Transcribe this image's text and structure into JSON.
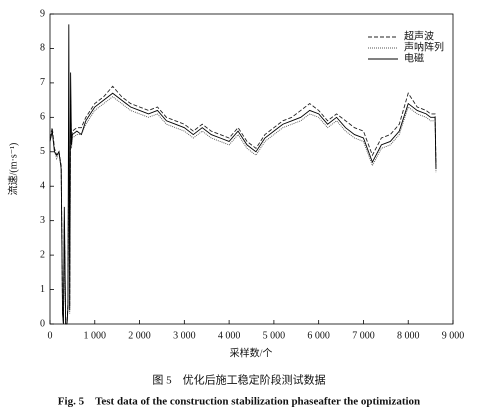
{
  "chart_data": {
    "type": "line",
    "y_label": "流速/(m·s⁻¹)",
    "x_label": "采样数/个",
    "caption": "图 5　优化后施工稳定阶段测试数据",
    "caption_en": "Fig. 5　Test data of the construction stabilization phaseafter the optimization",
    "x": [
      0,
      50,
      100,
      150,
      200,
      250,
      280,
      300,
      320,
      350,
      380,
      400,
      420,
      440,
      460,
      480,
      500,
      600,
      700,
      800,
      900,
      1000,
      1200,
      1400,
      1600,
      1800,
      2000,
      2200,
      2400,
      2600,
      2800,
      3000,
      3200,
      3400,
      3600,
      3800,
      4000,
      4200,
      4400,
      4600,
      4800,
      5000,
      5200,
      5400,
      5600,
      5800,
      6000,
      6200,
      6400,
      6600,
      6800,
      7000,
      7200,
      7400,
      7600,
      7800,
      8000,
      8200,
      8400,
      8500,
      8600,
      8620
    ],
    "series": [
      {
        "name": "超声波",
        "color": "#222",
        "style": "dashed",
        "values": [
          5.4,
          5.7,
          5.1,
          4.9,
          5.0,
          4.6,
          0.5,
          0,
          3.0,
          0,
          0,
          0.6,
          5.5,
          0.5,
          6.5,
          5.3,
          5.6,
          5.7,
          5.7,
          6.0,
          6.2,
          6.4,
          6.6,
          6.9,
          6.6,
          6.4,
          6.3,
          6.2,
          6.3,
          6.0,
          5.9,
          5.8,
          5.6,
          5.8,
          5.6,
          5.5,
          5.4,
          5.7,
          5.3,
          5.1,
          5.5,
          5.7,
          5.9,
          6.0,
          6.2,
          6.4,
          6.2,
          5.9,
          6.1,
          5.9,
          5.7,
          5.6,
          4.9,
          5.4,
          5.5,
          5.8,
          6.7,
          6.3,
          6.2,
          6.1,
          6.1,
          4.6
        ]
      },
      {
        "name": "声呐阵列",
        "color": "#555",
        "style": "dotted",
        "values": [
          5.3,
          5.6,
          5.0,
          4.8,
          5.0,
          4.5,
          0.4,
          0,
          2.8,
          0,
          0,
          0.4,
          5.0,
          0.3,
          6.0,
          5.1,
          5.4,
          5.5,
          5.5,
          5.8,
          6.0,
          6.2,
          6.4,
          6.6,
          6.4,
          6.2,
          6.1,
          6.0,
          6.1,
          5.8,
          5.7,
          5.6,
          5.4,
          5.6,
          5.4,
          5.3,
          5.2,
          5.5,
          5.1,
          4.9,
          5.3,
          5.5,
          5.7,
          5.8,
          5.9,
          6.1,
          6.0,
          5.7,
          5.9,
          5.6,
          5.4,
          5.3,
          4.6,
          5.1,
          5.2,
          5.5,
          6.3,
          6.1,
          6.0,
          5.9,
          5.9,
          4.4
        ]
      },
      {
        "name": "电磁",
        "color": "#000",
        "style": "solid",
        "values": [
          5.3,
          5.6,
          5.0,
          4.9,
          5.0,
          4.5,
          0.3,
          0,
          3.4,
          0,
          0,
          0.5,
          8.7,
          0.4,
          7.3,
          5.2,
          5.5,
          5.6,
          5.5,
          5.9,
          6.1,
          6.3,
          6.5,
          6.7,
          6.5,
          6.3,
          6.2,
          6.1,
          6.2,
          5.9,
          5.8,
          5.7,
          5.5,
          5.7,
          5.5,
          5.4,
          5.3,
          5.6,
          5.2,
          5.0,
          5.4,
          5.6,
          5.8,
          5.9,
          6.0,
          6.2,
          6.1,
          5.8,
          6.0,
          5.7,
          5.5,
          5.4,
          4.7,
          5.2,
          5.3,
          5.6,
          6.4,
          6.2,
          6.1,
          6.0,
          6.0,
          4.5
        ]
      }
    ],
    "xlim": [
      0,
      9000
    ],
    "xticks": [
      0,
      {
        "value": 1000,
        "label": "1 000"
      },
      {
        "value": 2000,
        "label": "2 000"
      },
      {
        "value": 3000,
        "label": "3 000"
      },
      {
        "value": 4000,
        "label": "4 000"
      },
      {
        "value": 5000,
        "label": "5 000"
      },
      {
        "value": 6000,
        "label": "6 000"
      },
      {
        "value": 7000,
        "label": "7 000"
      },
      {
        "value": 8000,
        "label": "8 000"
      },
      {
        "value": 9000,
        "label": "9 000"
      }
    ],
    "ylim": [
      0,
      9
    ],
    "yticks": [
      0,
      1,
      2,
      3,
      4,
      5,
      6,
      7,
      8,
      9
    ],
    "grid": false,
    "legend": "top-right"
  }
}
